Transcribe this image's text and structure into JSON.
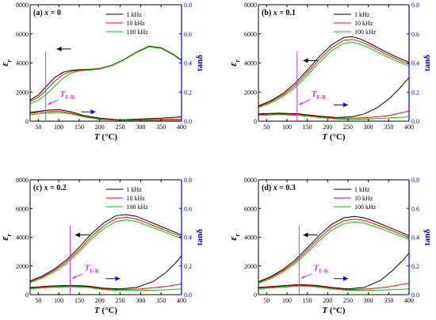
{
  "chart_data": [
    {
      "type": "line",
      "label_prefix": "(a)",
      "label_var": "x",
      "label_value": "= 0",
      "xlabel": "T",
      "xunit": "(°C)",
      "ylabel_left": "ε",
      "ylabel_left_sub": "r",
      "ylabel_right": "tanδ",
      "xlim": [
        30,
        400
      ],
      "ylim_left": [
        0,
        8000
      ],
      "ylim_right": [
        0,
        0.8
      ],
      "xticks": [
        50,
        100,
        150,
        200,
        250,
        300,
        350,
        400
      ],
      "yticks_left": [
        0,
        2000,
        4000,
        6000,
        8000
      ],
      "yticks_right": [
        0.0,
        0.2,
        0.4,
        0.6,
        0.8
      ],
      "annotation": "T",
      "annotation_sub": "F-R",
      "tfr_value": 68,
      "legend_position": "top-right",
      "series_colors": [
        "#000000",
        "#ff0000",
        "#00cc00"
      ],
      "axis_right_color": "#0000ff",
      "series": [
        {
          "name": "1 kHz",
          "axis": "left",
          "x": [
            30,
            50,
            70,
            90,
            110,
            130,
            150,
            170,
            200,
            230,
            260,
            290,
            320,
            350,
            380,
            400
          ],
          "values": [
            1450,
            1800,
            2400,
            3000,
            3350,
            3500,
            3540,
            3560,
            3620,
            3850,
            4250,
            4750,
            5150,
            5050,
            4600,
            4200
          ]
        },
        {
          "name": "10 kHz",
          "axis": "left",
          "x": [
            30,
            50,
            70,
            90,
            110,
            130,
            150,
            170,
            200,
            230,
            260,
            290,
            320,
            350,
            380,
            400
          ],
          "values": [
            1350,
            1650,
            2150,
            2750,
            3200,
            3420,
            3500,
            3530,
            3600,
            3830,
            4230,
            4730,
            5120,
            5020,
            4570,
            4170
          ]
        },
        {
          "name": "100 kHz",
          "axis": "left",
          "x": [
            30,
            50,
            70,
            90,
            110,
            130,
            150,
            170,
            200,
            230,
            260,
            290,
            320,
            350,
            380,
            400
          ],
          "values": [
            1200,
            1450,
            1850,
            2400,
            2950,
            3300,
            3450,
            3500,
            3580,
            3810,
            4210,
            4710,
            5100,
            5000,
            4550,
            4150
          ]
        },
        {
          "name": "1 kHz",
          "axis": "right",
          "x": [
            30,
            70,
            100,
            130,
            160,
            200,
            250,
            300,
            350,
            400
          ],
          "values": [
            0.06,
            0.075,
            0.08,
            0.065,
            0.04,
            0.02,
            0.01,
            0.015,
            0.02,
            0.03
          ]
        },
        {
          "name": "10 kHz",
          "axis": "right",
          "x": [
            30,
            70,
            100,
            130,
            160,
            200,
            250,
            300,
            350,
            400
          ],
          "values": [
            0.055,
            0.065,
            0.07,
            0.055,
            0.035,
            0.015,
            0.008,
            0.01,
            0.012,
            0.015
          ]
        },
        {
          "name": "100 kHz",
          "axis": "right",
          "x": [
            30,
            70,
            100,
            130,
            160,
            200,
            250,
            300,
            350,
            400
          ],
          "values": [
            0.045,
            0.055,
            0.06,
            0.05,
            0.03,
            0.012,
            0.005,
            0.006,
            0.006,
            0.006
          ]
        }
      ]
    },
    {
      "type": "line",
      "label_prefix": "(b)",
      "label_var": "x",
      "label_value": "= 0.1",
      "xlabel": "T",
      "xunit": "(°C)",
      "ylabel_left": "ε",
      "ylabel_left_sub": "r",
      "ylabel_right": "tanδ",
      "xlim": [
        30,
        400
      ],
      "ylim_left": [
        0,
        8000
      ],
      "ylim_right": [
        0,
        0.8
      ],
      "xticks": [
        50,
        100,
        150,
        200,
        250,
        300,
        350,
        400
      ],
      "yticks_left": [
        0,
        2000,
        4000,
        6000,
        8000
      ],
      "yticks_right": [
        0.0,
        0.2,
        0.4,
        0.6,
        0.8
      ],
      "annotation": "T",
      "annotation_sub": "F-R",
      "tfr_value": 125,
      "legend_position": "top-right",
      "series_colors": [
        "#000000",
        "#ff0000",
        "#00cc00"
      ],
      "axis_right_color": "#0000ff",
      "series": [
        {
          "name": "1 kHz",
          "axis": "left",
          "x": [
            30,
            60,
            90,
            120,
            150,
            180,
            210,
            240,
            260,
            280,
            310,
            340,
            370,
            400
          ],
          "values": [
            1050,
            1400,
            1900,
            2600,
            3500,
            4450,
            5250,
            5750,
            5800,
            5650,
            5250,
            4800,
            4400,
            4050
          ]
        },
        {
          "name": "10 kHz",
          "axis": "left",
          "x": [
            30,
            60,
            90,
            120,
            150,
            180,
            210,
            240,
            260,
            280,
            310,
            340,
            370,
            400
          ],
          "values": [
            1000,
            1330,
            1800,
            2450,
            3330,
            4250,
            5050,
            5560,
            5620,
            5480,
            5100,
            4650,
            4270,
            3920
          ]
        },
        {
          "name": "100 kHz",
          "axis": "left",
          "x": [
            30,
            60,
            90,
            120,
            150,
            180,
            210,
            240,
            260,
            280,
            310,
            340,
            370,
            400
          ],
          "values": [
            930,
            1250,
            1700,
            2300,
            3150,
            4050,
            4850,
            5350,
            5420,
            5300,
            4930,
            4500,
            4130,
            3800
          ]
        },
        {
          "name": "1 kHz",
          "axis": "right",
          "x": [
            30,
            80,
            130,
            180,
            220,
            260,
            290,
            320,
            350,
            375,
            400
          ],
          "values": [
            0.05,
            0.055,
            0.05,
            0.035,
            0.025,
            0.03,
            0.05,
            0.09,
            0.15,
            0.22,
            0.3
          ]
        },
        {
          "name": "10 kHz",
          "axis": "right",
          "x": [
            30,
            80,
            130,
            180,
            220,
            260,
            300,
            340,
            370,
            400
          ],
          "values": [
            0.045,
            0.05,
            0.045,
            0.03,
            0.02,
            0.02,
            0.025,
            0.035,
            0.05,
            0.07
          ]
        },
        {
          "name": "100 kHz",
          "axis": "right",
          "x": [
            30,
            80,
            130,
            180,
            220,
            260,
            300,
            340,
            370,
            400
          ],
          "values": [
            0.04,
            0.045,
            0.04,
            0.025,
            0.015,
            0.012,
            0.015,
            0.02,
            0.025,
            0.03
          ]
        }
      ]
    },
    {
      "type": "line",
      "label_prefix": "(c)",
      "label_var": "x",
      "label_value": "= 0.2",
      "xlabel": "T",
      "xunit": "(°C)",
      "ylabel_left": "ε",
      "ylabel_left_sub": "r",
      "ylabel_right": "tanδ",
      "xlim": [
        30,
        400
      ],
      "ylim_left": [
        0,
        8000
      ],
      "ylim_right": [
        0,
        0.8
      ],
      "xticks": [
        50,
        100,
        150,
        200,
        250,
        300,
        350,
        400
      ],
      "yticks_left": [
        0,
        2000,
        4000,
        6000,
        8000
      ],
      "yticks_right": [
        0.0,
        0.2,
        0.4,
        0.6,
        0.8
      ],
      "annotation": "T",
      "annotation_sub": "F-R",
      "tfr_value": 128,
      "legend_position": "top-right",
      "series_colors": [
        "#000000",
        "#ff0000",
        "#00cc00"
      ],
      "axis_right_color": "#0000ff",
      "series": [
        {
          "name": "1 kHz",
          "axis": "left",
          "x": [
            30,
            60,
            90,
            120,
            150,
            180,
            210,
            240,
            265,
            290,
            320,
            350,
            380,
            400
          ],
          "values": [
            950,
            1300,
            1800,
            2450,
            3300,
            4250,
            5000,
            5500,
            5580,
            5450,
            5100,
            4750,
            4400,
            4150
          ]
        },
        {
          "name": "10 kHz",
          "axis": "left",
          "x": [
            30,
            60,
            90,
            120,
            150,
            180,
            210,
            240,
            265,
            290,
            320,
            350,
            380,
            400
          ],
          "values": [
            900,
            1230,
            1700,
            2320,
            3130,
            4050,
            4800,
            5300,
            5390,
            5270,
            4930,
            4600,
            4260,
            4020
          ]
        },
        {
          "name": "100 kHz",
          "axis": "left",
          "x": [
            30,
            60,
            90,
            120,
            150,
            180,
            210,
            240,
            265,
            290,
            320,
            350,
            380,
            400
          ],
          "values": [
            840,
            1150,
            1600,
            2200,
            2980,
            3870,
            4600,
            5100,
            5200,
            5090,
            4770,
            4450,
            4120,
            3900
          ]
        },
        {
          "name": "1 kHz",
          "axis": "right",
          "x": [
            30,
            80,
            130,
            170,
            210,
            250,
            290,
            330,
            360,
            385,
            400
          ],
          "values": [
            0.05,
            0.06,
            0.065,
            0.06,
            0.045,
            0.04,
            0.05,
            0.09,
            0.15,
            0.22,
            0.27
          ]
        },
        {
          "name": "10 kHz",
          "axis": "right",
          "x": [
            30,
            80,
            130,
            170,
            210,
            250,
            300,
            340,
            370,
            400
          ],
          "values": [
            0.045,
            0.055,
            0.06,
            0.055,
            0.04,
            0.035,
            0.04,
            0.05,
            0.06,
            0.075
          ]
        },
        {
          "name": "100 kHz",
          "axis": "right",
          "x": [
            30,
            80,
            130,
            170,
            210,
            250,
            300,
            340,
            370,
            400
          ],
          "values": [
            0.04,
            0.05,
            0.055,
            0.05,
            0.035,
            0.028,
            0.03,
            0.032,
            0.035,
            0.04
          ]
        }
      ]
    },
    {
      "type": "line",
      "label_prefix": "(d)",
      "label_var": "x",
      "label_value": "= 0.3",
      "xlabel": "T",
      "xunit": "(°C)",
      "ylabel_left": "ε",
      "ylabel_left_sub": "r",
      "ylabel_right": "tanδ",
      "xlim": [
        30,
        400
      ],
      "ylim_left": [
        0,
        8000
      ],
      "ylim_right": [
        0,
        0.8
      ],
      "xticks": [
        50,
        100,
        150,
        200,
        250,
        300,
        350,
        400
      ],
      "yticks_left": [
        0,
        2000,
        4000,
        6000,
        8000
      ],
      "yticks_right": [
        0.0,
        0.2,
        0.4,
        0.6,
        0.8
      ],
      "annotation": "T",
      "annotation_sub": "F-R",
      "tfr_value": 130,
      "legend_position": "top-right",
      "series_colors": [
        "#000000",
        "#ff0000",
        "#00cc00"
      ],
      "axis_right_color": "#0000ff",
      "series": [
        {
          "name": "1 kHz",
          "axis": "left",
          "x": [
            30,
            60,
            90,
            120,
            150,
            180,
            210,
            240,
            265,
            290,
            320,
            350,
            380,
            400
          ],
          "values": [
            900,
            1250,
            1750,
            2400,
            3250,
            4150,
            4900,
            5350,
            5450,
            5350,
            5050,
            4700,
            4350,
            4100
          ]
        },
        {
          "name": "10 kHz",
          "axis": "left",
          "x": [
            30,
            60,
            90,
            120,
            150,
            180,
            210,
            240,
            265,
            290,
            320,
            350,
            380,
            400
          ],
          "values": [
            860,
            1190,
            1660,
            2270,
            3080,
            3950,
            4700,
            5150,
            5260,
            5170,
            4880,
            4550,
            4210,
            3970
          ]
        },
        {
          "name": "100 kHz",
          "axis": "left",
          "x": [
            30,
            60,
            90,
            120,
            150,
            180,
            210,
            240,
            265,
            290,
            320,
            350,
            380,
            400
          ],
          "values": [
            800,
            1110,
            1560,
            2150,
            2930,
            3770,
            4500,
            4950,
            5070,
            4990,
            4710,
            4400,
            4070,
            3840
          ]
        },
        {
          "name": "1 kHz",
          "axis": "right",
          "x": [
            30,
            80,
            130,
            170,
            210,
            250,
            290,
            330,
            360,
            385,
            400
          ],
          "values": [
            0.05,
            0.06,
            0.07,
            0.065,
            0.05,
            0.04,
            0.05,
            0.1,
            0.17,
            0.24,
            0.29
          ]
        },
        {
          "name": "10 kHz",
          "axis": "right",
          "x": [
            30,
            80,
            130,
            170,
            210,
            250,
            300,
            340,
            370,
            400
          ],
          "values": [
            0.045,
            0.055,
            0.065,
            0.06,
            0.045,
            0.035,
            0.04,
            0.05,
            0.065,
            0.08
          ]
        },
        {
          "name": "100 kHz",
          "axis": "right",
          "x": [
            30,
            80,
            130,
            170,
            210,
            250,
            300,
            340,
            370,
            400
          ],
          "values": [
            0.04,
            0.05,
            0.06,
            0.055,
            0.04,
            0.03,
            0.03,
            0.033,
            0.036,
            0.04
          ]
        }
      ]
    }
  ]
}
